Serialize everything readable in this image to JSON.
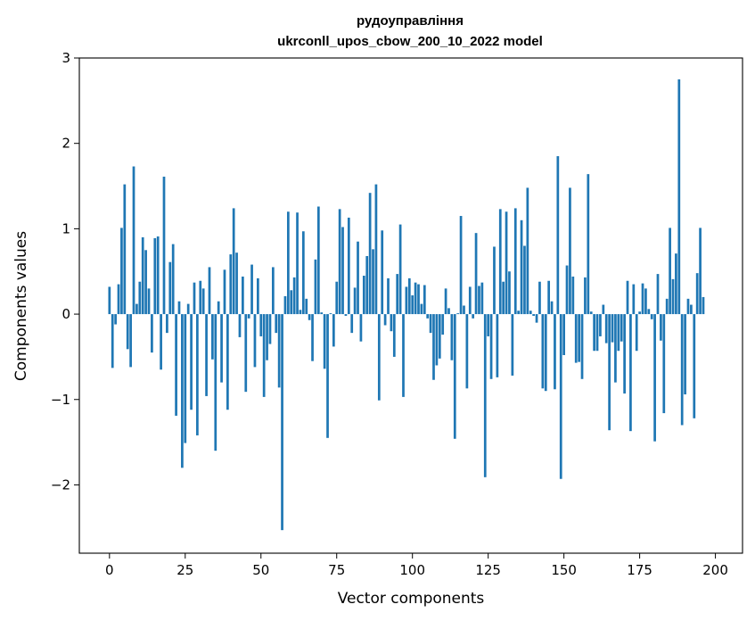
{
  "chart_data": {
    "type": "bar",
    "title_line1": "рудоуправління",
    "title_line2": "ukrconll_upos_cbow_200_10_2022 model",
    "xlabel": "Vector components",
    "ylabel": "Components values",
    "xlim": [
      -9.95,
      208.95
    ],
    "ylim": [
      -2.8,
      3.0
    ],
    "x_ticks": [
      0,
      25,
      50,
      75,
      100,
      125,
      150,
      175,
      200
    ],
    "x_tick_labels": [
      "0",
      "25",
      "50",
      "75",
      "100",
      "125",
      "150",
      "175",
      "200"
    ],
    "y_ticks": [
      -2,
      -1,
      0,
      1,
      2,
      3
    ],
    "y_tick_labels": [
      "−2",
      "−1",
      "0",
      "1",
      "2",
      "3"
    ],
    "bar_color": "#1f77b4",
    "values": [
      0.32,
      -0.63,
      -0.12,
      0.35,
      1.01,
      1.52,
      -0.41,
      -0.62,
      1.73,
      0.12,
      0.38,
      0.9,
      0.75,
      0.3,
      -0.45,
      0.89,
      0.91,
      -0.65,
      1.61,
      -0.22,
      0.61,
      0.82,
      -1.19,
      0.15,
      -1.8,
      -1.51,
      0.12,
      -1.12,
      0.37,
      -1.42,
      0.39,
      0.3,
      -0.96,
      0.55,
      -0.53,
      -1.6,
      0.15,
      -0.8,
      0.52,
      -1.12,
      0.7,
      1.24,
      0.72,
      -0.27,
      0.44,
      -0.91,
      -0.05,
      0.58,
      -0.62,
      0.42,
      -0.26,
      -0.97,
      -0.54,
      -0.35,
      0.55,
      -0.22,
      -0.86,
      -2.53,
      0.21,
      1.2,
      0.28,
      0.43,
      1.19,
      0.05,
      0.97,
      0.18,
      -0.07,
      -0.55,
      0.64,
      1.26,
      0.02,
      -0.64,
      -1.45,
      0.01,
      -0.38,
      0.38,
      1.23,
      1.02,
      -0.02,
      1.13,
      -0.22,
      0.31,
      0.85,
      -0.32,
      0.45,
      0.68,
      1.42,
      0.76,
      1.52,
      -1.01,
      0.98,
      -0.13,
      0.42,
      -0.2,
      -0.5,
      0.47,
      1.05,
      -0.97,
      0.32,
      0.42,
      0.22,
      0.37,
      0.35,
      0.12,
      0.34,
      -0.05,
      -0.22,
      -0.77,
      -0.6,
      -0.52,
      -0.24,
      0.3,
      0.07,
      -0.54,
      -1.46,
      0.01,
      1.15,
      0.1,
      -0.87,
      0.32,
      -0.05,
      0.95,
      0.33,
      0.37,
      -1.91,
      -0.26,
      -0.76,
      0.79,
      -0.74,
      1.23,
      0.38,
      1.2,
      0.5,
      -0.72,
      1.24,
      0.04,
      1.1,
      0.8,
      1.48,
      0.04,
      -0.02,
      -0.1,
      0.38,
      -0.87,
      -0.9,
      0.39,
      0.15,
      -0.88,
      1.85,
      -1.93,
      -0.48,
      0.57,
      1.48,
      0.44,
      -0.57,
      -0.56,
      -0.76,
      0.43,
      1.64,
      0.03,
      -0.43,
      -0.43,
      -0.26,
      0.11,
      -0.34,
      -1.36,
      -0.33,
      -0.8,
      -0.43,
      -0.32,
      -0.93,
      0.39,
      -1.37,
      0.35,
      -0.43,
      0.03,
      0.36,
      0.3,
      0.06,
      -0.06,
      -1.49,
      0.47,
      -0.31,
      -1.16,
      0.18,
      1.01,
      0.41,
      0.71,
      2.75,
      -1.3,
      -0.94,
      0.18,
      0.11,
      -1.22,
      0.48,
      1.01,
      0.2
    ]
  }
}
